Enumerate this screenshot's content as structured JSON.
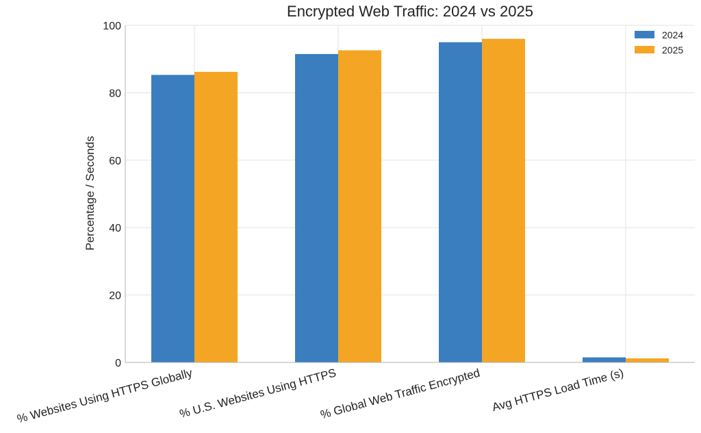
{
  "chart_data": {
    "type": "bar",
    "title": "Encrypted Web Traffic: 2024 vs 2025",
    "xlabel": "",
    "ylabel": "Percentage / Seconds",
    "ylim": [
      0,
      100
    ],
    "yticks": [
      0,
      20,
      40,
      60,
      80,
      100
    ],
    "grid": true,
    "legend_position": "top-right",
    "categories": [
      "% Websites Using HTTPS Globally",
      "% U.S. Websites Using HTTPS",
      "% Global Web Traffic Encrypted",
      "Avg HTTPS Load Time (s)"
    ],
    "series": [
      {
        "name": "2024",
        "color": "#3a7ebf",
        "values": [
          85.3,
          91.5,
          95.0,
          1.5
        ]
      },
      {
        "name": "2025",
        "color": "#f4a523",
        "values": [
          86.2,
          92.6,
          96.0,
          1.2
        ]
      }
    ]
  }
}
